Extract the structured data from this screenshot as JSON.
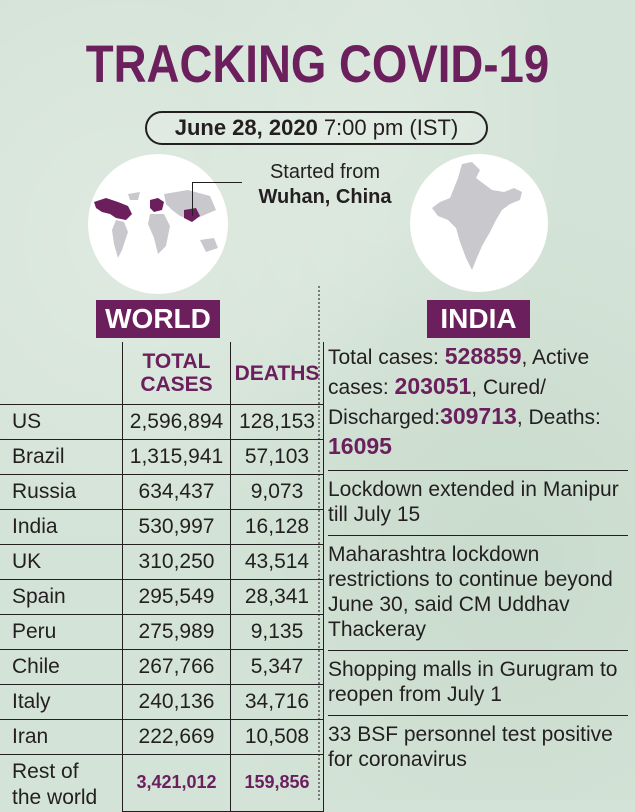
{
  "title": "TRACKING COVID-19",
  "date": "June 28, 2020",
  "time": "7:00 pm (IST)",
  "origin": {
    "label": "Started from",
    "place": "Wuhan, China"
  },
  "world": {
    "label": "WORLD",
    "headers": {
      "total_line1": "TOTAL",
      "total_line2": "CASES",
      "deaths": "DEATHS"
    },
    "rows": [
      {
        "country": "US",
        "cases": "2,596,894",
        "deaths": "128,153"
      },
      {
        "country": "Brazil",
        "cases": "1,315,941",
        "deaths": "57,103"
      },
      {
        "country": "Russia",
        "cases": "634,437",
        "deaths": "9,073"
      },
      {
        "country": "India",
        "cases": "530,997",
        "deaths": "16,128"
      },
      {
        "country": "UK",
        "cases": "310,250",
        "deaths": "43,514"
      },
      {
        "country": "Spain",
        "cases": "295,549",
        "deaths": "28,341"
      },
      {
        "country": "Peru",
        "cases": "275,989",
        "deaths": "9,135"
      },
      {
        "country": "Chile",
        "cases": "267,766",
        "deaths": "5,347"
      },
      {
        "country": "Italy",
        "cases": "240,136",
        "deaths": "34,716"
      },
      {
        "country": "Iran",
        "cases": "222,669",
        "deaths": "10,508"
      }
    ],
    "rest": {
      "line1": "Rest of",
      "line2": "the world",
      "cases": "3,421,012",
      "deaths": "159,856"
    }
  },
  "india": {
    "label": "INDIA",
    "total_label": "Total cases: ",
    "total": "528859",
    "active_label": ", Active cases: ",
    "active": "203051",
    "cured_label": ", Cured/ Discharged:",
    "cured": "309713",
    "deaths_label": ", Deaths: ",
    "deaths": "16095",
    "news": [
      "Lockdown extended in Manipur till July 15",
      "Maharashtra lockdown restrictions to continue beyond June 30, said CM Uddhav Thackeray",
      "Shopping malls in Gurugram to reopen from July 1",
      "33 BSF personnel test positive for coronavirus"
    ]
  },
  "colors": {
    "accent": "#6b1f5c",
    "background": "#d4e3d7"
  }
}
